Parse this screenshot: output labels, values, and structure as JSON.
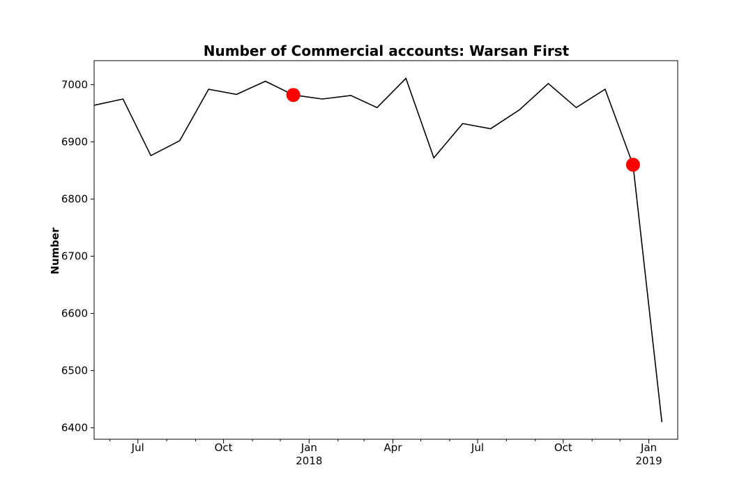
{
  "chart_data": {
    "type": "line",
    "title": "Number of Commercial accounts: Warsan First",
    "xlabel": "",
    "ylabel": "Number",
    "x_type": "date",
    "xlim": [
      "2017-05-15",
      "2019-02-01"
    ],
    "ylim": [
      6380,
      7042
    ],
    "grid": false,
    "legend": "none",
    "y_ticks": [
      6400,
      6500,
      6600,
      6700,
      6800,
      6900,
      7000
    ],
    "x_ticks": [
      {
        "date": "2017-07-01",
        "label": "Jul",
        "sublabel": ""
      },
      {
        "date": "2017-10-01",
        "label": "Oct",
        "sublabel": ""
      },
      {
        "date": "2018-01-01",
        "label": "Jan",
        "sublabel": "2018"
      },
      {
        "date": "2018-04-01",
        "label": "Apr",
        "sublabel": ""
      },
      {
        "date": "2018-07-01",
        "label": "Jul",
        "sublabel": ""
      },
      {
        "date": "2018-10-01",
        "label": "Oct",
        "sublabel": ""
      },
      {
        "date": "2019-01-01",
        "label": "Jan",
        "sublabel": "2019"
      }
    ],
    "minor_ticks": [
      "2017-06-01",
      "2017-08-01",
      "2017-09-01",
      "2017-11-01",
      "2017-12-01",
      "2018-02-01",
      "2018-03-01",
      "2018-05-01",
      "2018-06-01",
      "2018-08-01",
      "2018-09-01",
      "2018-11-01",
      "2018-12-01"
    ],
    "series": [
      {
        "color": "#000000",
        "points": [
          {
            "x": "2017-05-15",
            "y": 6964
          },
          {
            "x": "2017-06-15",
            "y": 6975
          },
          {
            "x": "2017-07-15",
            "y": 6876
          },
          {
            "x": "2017-08-15",
            "y": 6902
          },
          {
            "x": "2017-09-15",
            "y": 6992
          },
          {
            "x": "2017-10-15",
            "y": 6983
          },
          {
            "x": "2017-11-15",
            "y": 7006
          },
          {
            "x": "2017-12-15",
            "y": 6982
          },
          {
            "x": "2018-01-15",
            "y": 6975
          },
          {
            "x": "2018-02-15",
            "y": 6981
          },
          {
            "x": "2018-03-15",
            "y": 6960
          },
          {
            "x": "2018-04-15",
            "y": 7011
          },
          {
            "x": "2018-05-15",
            "y": 6872
          },
          {
            "x": "2018-06-15",
            "y": 6932
          },
          {
            "x": "2018-07-15",
            "y": 6923
          },
          {
            "x": "2018-08-15",
            "y": 6956
          },
          {
            "x": "2018-09-15",
            "y": 7002
          },
          {
            "x": "2018-10-15",
            "y": 6960
          },
          {
            "x": "2018-11-15",
            "y": 6992
          },
          {
            "x": "2018-12-15",
            "y": 6860
          },
          {
            "x": "2019-01-15",
            "y": 6410
          }
        ]
      }
    ],
    "highlights": [
      {
        "x": "2017-12-15",
        "y": 6982,
        "color": "#ff0000"
      },
      {
        "x": "2018-12-15",
        "y": 6860,
        "color": "#ff0000"
      }
    ]
  }
}
